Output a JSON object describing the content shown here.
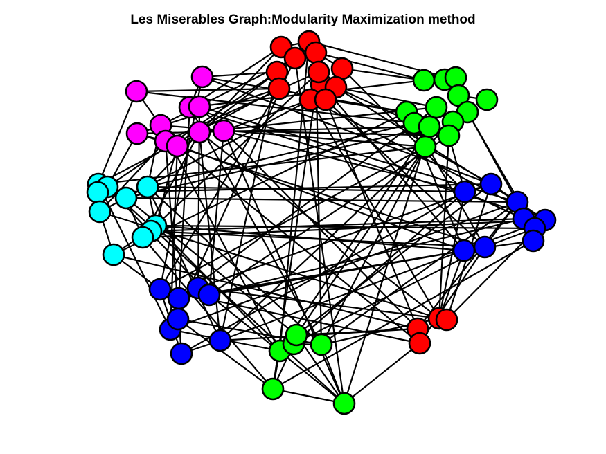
{
  "title": "Les Miserables Graph:Modularity Maximization method",
  "colors": {
    "red": "#ff0000",
    "green": "#00ff00",
    "blue": "#0000ff",
    "magenta": "#ff00ff",
    "cyan": "#00ffff",
    "edge": "#000000",
    "node_border": "#000000"
  }
}
